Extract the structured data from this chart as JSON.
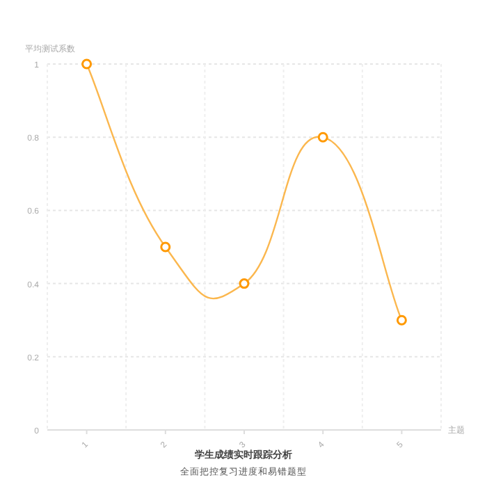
{
  "chart_data": {
    "type": "line",
    "title": "学生成绩实时跟踪分析",
    "subtitle": "全面把控复习进度和易错题型",
    "xlabel": "主题",
    "ylabel": "平均测试系数",
    "categories": [
      "1",
      "2",
      "3",
      "4",
      "5"
    ],
    "series": [
      {
        "color": "#fbb74e",
        "values": [
          1,
          0.5,
          0.4,
          0.8,
          0.3
        ]
      }
    ],
    "ylim": [
      0,
      1
    ],
    "yticks": [
      0,
      0.2,
      0.4,
      0.6,
      0.8,
      1
    ],
    "grid": true,
    "marker": "circle",
    "line_style": "solid"
  }
}
